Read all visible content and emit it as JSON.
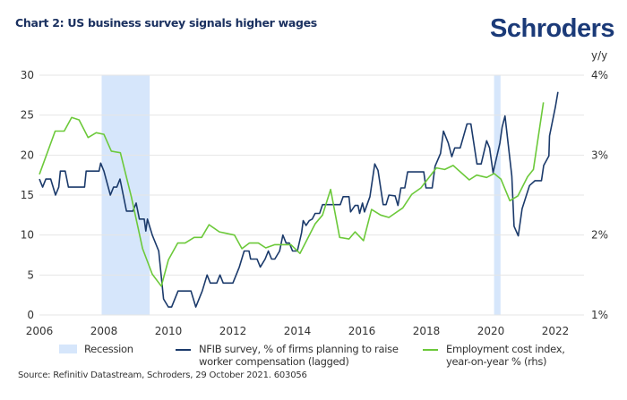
{
  "header": {
    "title": "Chart 2: US business survey signals higher wages",
    "logo": "Schroders"
  },
  "source": "Source: Refinitiv Datastream, Schroders, 29 October 2021. 603056",
  "colors": {
    "nfib": "#1b3a6b",
    "eci": "#6cc93a",
    "recession": "#d6e6fb",
    "grid": "#e6e6e6"
  },
  "chart_data": {
    "type": "line",
    "title": "Chart 2: US business survey signals higher wages",
    "xlim": [
      2006,
      2023
    ],
    "x_ticks": [
      "2006",
      "2008",
      "2010",
      "2012",
      "2014",
      "2016",
      "2018",
      "2020",
      "2022"
    ],
    "ylim": [
      0,
      30
    ],
    "y_ticks": [
      "0",
      "5",
      "10",
      "15",
      "20",
      "25",
      "30"
    ],
    "y2lim": [
      1,
      4
    ],
    "y2label": "y/y",
    "y2_ticks": [
      "1%",
      "2%",
      "3%",
      "4%"
    ],
    "grid": true,
    "legend_position": "bottom",
    "recessions": {
      "name": "Recession",
      "periods": [
        [
          2007.93,
          2009.42
        ],
        [
          2020.1,
          2020.3
        ]
      ]
    },
    "series": [
      {
        "name": "NFIB survey, % of firms planning to raise worker compensation (lagged)",
        "axis": "left",
        "points": [
          [
            2006.0,
            17
          ],
          [
            2006.1,
            16
          ],
          [
            2006.2,
            17
          ],
          [
            2006.35,
            17
          ],
          [
            2006.5,
            15
          ],
          [
            2006.6,
            16
          ],
          [
            2006.65,
            18
          ],
          [
            2006.8,
            18
          ],
          [
            2006.9,
            16
          ],
          [
            2007.2,
            16
          ],
          [
            2007.4,
            16
          ],
          [
            2007.45,
            18
          ],
          [
            2007.7,
            18
          ],
          [
            2007.85,
            18
          ],
          [
            2007.9,
            19
          ],
          [
            2008.0,
            18
          ],
          [
            2008.2,
            15
          ],
          [
            2008.3,
            16
          ],
          [
            2008.4,
            16
          ],
          [
            2008.5,
            17
          ],
          [
            2008.6,
            15
          ],
          [
            2008.7,
            13
          ],
          [
            2008.9,
            13
          ],
          [
            2009.0,
            14
          ],
          [
            2009.1,
            12
          ],
          [
            2009.25,
            12
          ],
          [
            2009.3,
            10.5
          ],
          [
            2009.35,
            12
          ],
          [
            2009.5,
            10
          ],
          [
            2009.7,
            8
          ],
          [
            2009.75,
            6
          ],
          [
            2009.85,
            2
          ],
          [
            2010.0,
            1
          ],
          [
            2010.1,
            1
          ],
          [
            2010.3,
            3
          ],
          [
            2010.7,
            3
          ],
          [
            2010.85,
            1
          ],
          [
            2011.05,
            3
          ],
          [
            2011.2,
            5
          ],
          [
            2011.3,
            4
          ],
          [
            2011.5,
            4
          ],
          [
            2011.6,
            5
          ],
          [
            2011.7,
            4
          ],
          [
            2012.0,
            4
          ],
          [
            2012.2,
            6
          ],
          [
            2012.35,
            8
          ],
          [
            2012.5,
            8
          ],
          [
            2012.55,
            7
          ],
          [
            2012.75,
            7
          ],
          [
            2012.85,
            6
          ],
          [
            2013.0,
            7
          ],
          [
            2013.1,
            8
          ],
          [
            2013.2,
            7
          ],
          [
            2013.3,
            7
          ],
          [
            2013.45,
            8
          ],
          [
            2013.55,
            10
          ],
          [
            2013.65,
            9
          ],
          [
            2013.75,
            9
          ],
          [
            2013.85,
            8
          ],
          [
            2014.0,
            8
          ],
          [
            2014.13,
            10.3
          ],
          [
            2014.18,
            11.8
          ],
          [
            2014.27,
            11.2
          ],
          [
            2014.37,
            11.8
          ],
          [
            2014.46,
            12
          ],
          [
            2014.55,
            12.7
          ],
          [
            2014.69,
            12.7
          ],
          [
            2014.78,
            13.8
          ],
          [
            2015.33,
            13.8
          ],
          [
            2015.42,
            14.8
          ],
          [
            2015.6,
            14.8
          ],
          [
            2015.65,
            12.9
          ],
          [
            2015.79,
            13.7
          ],
          [
            2015.88,
            13.7
          ],
          [
            2015.93,
            12.7
          ],
          [
            2016.02,
            14
          ],
          [
            2016.08,
            12.9
          ],
          [
            2016.25,
            14.8
          ],
          [
            2016.4,
            18.9
          ],
          [
            2016.5,
            18.1
          ],
          [
            2016.66,
            13.8
          ],
          [
            2016.75,
            13.8
          ],
          [
            2016.84,
            15
          ],
          [
            2017.03,
            14.9
          ],
          [
            2017.12,
            13.7
          ],
          [
            2017.21,
            15.9
          ],
          [
            2017.33,
            15.9
          ],
          [
            2017.42,
            17.9
          ],
          [
            2017.92,
            17.9
          ],
          [
            2017.99,
            15.9
          ],
          [
            2018.18,
            15.9
          ],
          [
            2018.27,
            18.6
          ],
          [
            2018.44,
            20.2
          ],
          [
            2018.53,
            23
          ],
          [
            2018.68,
            21.5
          ],
          [
            2018.79,
            19.8
          ],
          [
            2018.88,
            20.9
          ],
          [
            2019.05,
            20.9
          ],
          [
            2019.26,
            23.9
          ],
          [
            2019.38,
            23.9
          ],
          [
            2019.57,
            18.9
          ],
          [
            2019.7,
            18.9
          ],
          [
            2019.87,
            21.8
          ],
          [
            2019.96,
            20.9
          ],
          [
            2020.07,
            17.8
          ],
          [
            2020.28,
            21.5
          ],
          [
            2020.35,
            23.5
          ],
          [
            2020.44,
            24.9
          ],
          [
            2020.65,
            17.4
          ],
          [
            2020.72,
            11.1
          ],
          [
            2020.85,
            9.9
          ],
          [
            2020.97,
            13.3
          ],
          [
            2021.2,
            16.2
          ],
          [
            2021.37,
            16.8
          ],
          [
            2021.57,
            16.8
          ],
          [
            2021.64,
            18.7
          ],
          [
            2021.8,
            19.9
          ],
          [
            2021.82,
            22.4
          ],
          [
            2022.0,
            26
          ],
          [
            2022.08,
            27.9
          ]
        ]
      },
      {
        "name": "Employment cost index, year-on-year % (rhs)",
        "axis": "right",
        "points": [
          [
            2006.0,
            2.76
          ],
          [
            2006.49,
            3.3
          ],
          [
            2006.77,
            3.3
          ],
          [
            2007.0,
            3.47
          ],
          [
            2007.23,
            3.44
          ],
          [
            2007.51,
            3.22
          ],
          [
            2007.76,
            3.28
          ],
          [
            2008.0,
            3.26
          ],
          [
            2008.23,
            3.05
          ],
          [
            2008.51,
            3.03
          ],
          [
            2008.85,
            2.48
          ],
          [
            2009.2,
            1.83
          ],
          [
            2009.5,
            1.51
          ],
          [
            2009.78,
            1.36
          ],
          [
            2010.0,
            1.69
          ],
          [
            2010.29,
            1.9
          ],
          [
            2010.52,
            1.9
          ],
          [
            2010.8,
            1.97
          ],
          [
            2011.03,
            1.97
          ],
          [
            2011.26,
            2.13
          ],
          [
            2011.58,
            2.04
          ],
          [
            2012.05,
            2.0
          ],
          [
            2012.28,
            1.83
          ],
          [
            2012.51,
            1.9
          ],
          [
            2012.79,
            1.9
          ],
          [
            2013.02,
            1.84
          ],
          [
            2013.3,
            1.88
          ],
          [
            2013.8,
            1.88
          ],
          [
            2014.08,
            1.77
          ],
          [
            2014.55,
            2.14
          ],
          [
            2014.78,
            2.25
          ],
          [
            2015.03,
            2.57
          ],
          [
            2015.31,
            1.97
          ],
          [
            2015.6,
            1.95
          ],
          [
            2015.79,
            2.04
          ],
          [
            2016.05,
            1.93
          ],
          [
            2016.3,
            2.32
          ],
          [
            2016.58,
            2.25
          ],
          [
            2016.84,
            2.22
          ],
          [
            2017.27,
            2.34
          ],
          [
            2017.55,
            2.51
          ],
          [
            2017.83,
            2.59
          ],
          [
            2018.31,
            2.84
          ],
          [
            2018.57,
            2.82
          ],
          [
            2018.83,
            2.87
          ],
          [
            2019.33,
            2.69
          ],
          [
            2019.56,
            2.75
          ],
          [
            2019.87,
            2.72
          ],
          [
            2020.1,
            2.77
          ],
          [
            2020.31,
            2.7
          ],
          [
            2020.59,
            2.43
          ],
          [
            2020.84,
            2.49
          ],
          [
            2021.14,
            2.73
          ],
          [
            2021.32,
            2.82
          ],
          [
            2021.63,
            3.66
          ]
        ]
      }
    ]
  },
  "legend": {
    "recession": "Recession",
    "nfib_line1": "NFIB survey, % of firms planning to raise",
    "nfib_line2": "worker compensation (lagged)",
    "eci_line1": "Employment cost index,",
    "eci_line2": "year-on-year % (rhs)"
  }
}
